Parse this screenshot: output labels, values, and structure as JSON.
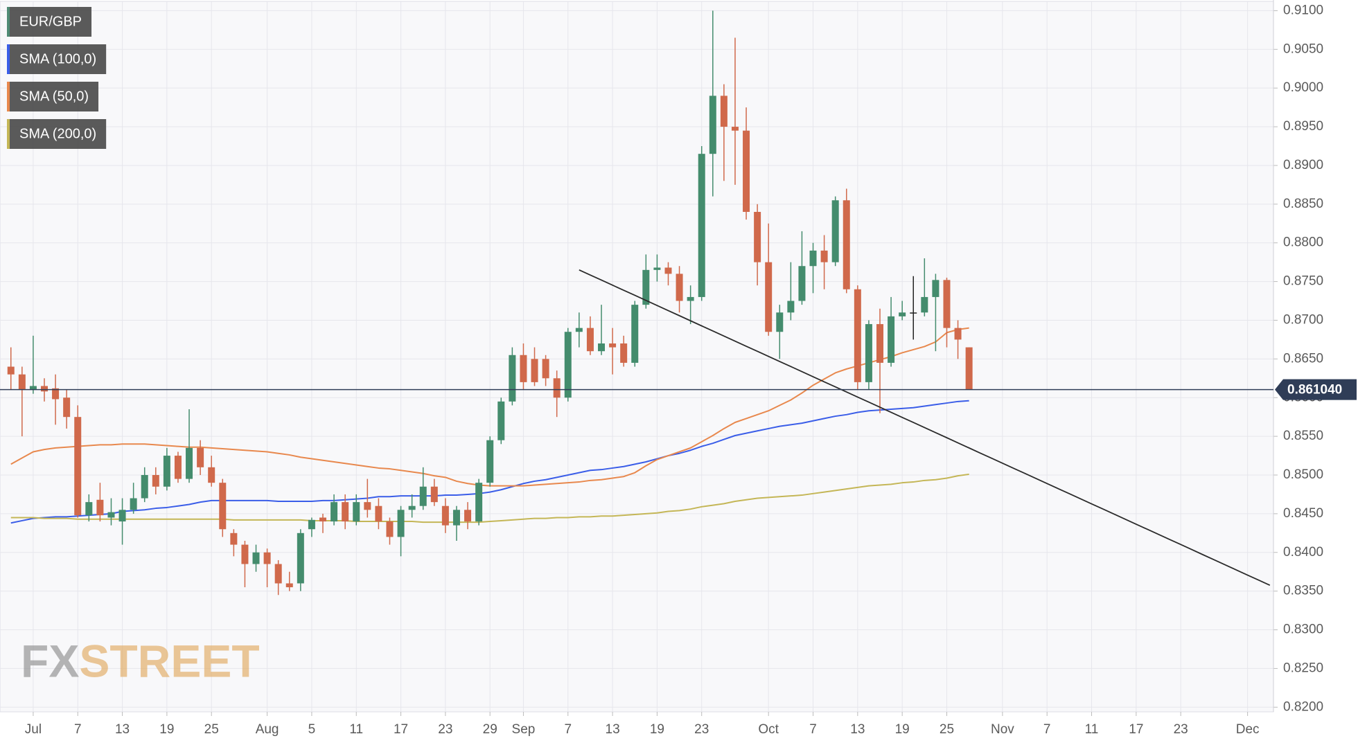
{
  "chart_data": {
    "type": "candlestick",
    "categories": [
      null,
      null,
      "Jul",
      null,
      null,
      null,
      "7",
      null,
      null,
      null,
      "13",
      null,
      null,
      null,
      "19",
      null,
      null,
      null,
      "25",
      null,
      null,
      null,
      null,
      "Aug",
      null,
      null,
      null,
      "5",
      null,
      null,
      null,
      "11",
      null,
      null,
      null,
      "17",
      null,
      null,
      null,
      "23",
      null,
      null,
      null,
      "29",
      null,
      null,
      "Sep",
      null,
      null,
      null,
      "7",
      null,
      null,
      null,
      "13",
      null,
      null,
      null,
      "19",
      null,
      null,
      null,
      "23",
      null,
      null,
      null,
      null,
      null,
      "Oct",
      null,
      null,
      null,
      "7",
      null,
      null,
      null,
      "13",
      null,
      null,
      null,
      "19",
      null,
      null,
      null,
      "25",
      null,
      null,
      null,
      null,
      "Nov",
      null,
      null,
      null,
      "7",
      null,
      null,
      null,
      "11",
      null,
      null,
      null,
      "17",
      null,
      null,
      null,
      "23",
      null,
      null,
      null,
      null,
      null,
      "Dec",
      null,
      null
    ],
    "series": [
      {
        "name": "EUR/GBP",
        "type": "candlestick",
        "color": "#4f8a74",
        "up_color": "#448c6d",
        "down_color": "#d0694b",
        "doji_color": "#222222",
        "open": [
          0.864,
          0.863,
          0.861,
          0.8615,
          0.8612,
          0.86,
          0.8575,
          0.8448,
          0.8468,
          0.8445,
          0.844,
          0.8455,
          0.847,
          0.85,
          0.8485,
          0.8525,
          0.8495,
          0.8535,
          0.851,
          0.849,
          0.8425,
          0.841,
          0.8385,
          0.84,
          0.8385,
          0.836,
          0.836,
          0.843,
          0.8445,
          0.844,
          0.8465,
          0.844,
          0.8465,
          0.846,
          0.844,
          0.842,
          0.8455,
          0.846,
          0.8485,
          0.846,
          0.8435,
          0.8455,
          0.844,
          0.849,
          0.8545,
          0.8595,
          0.8655,
          0.865,
          0.865,
          0.8625,
          0.86,
          0.8685,
          0.869,
          0.866,
          0.867,
          0.867,
          0.8645,
          0.872,
          0.8765,
          0.8768,
          0.876,
          0.8725,
          0.873,
          0.8915,
          0.899,
          0.895,
          0.8945,
          0.884,
          0.8775,
          0.8685,
          0.871,
          0.8725,
          0.877,
          0.879,
          0.8775,
          0.8855,
          0.874,
          0.862,
          0.8695,
          0.8645,
          0.8705,
          0.871,
          0.871,
          0.873,
          0.8752,
          0.869,
          0.8665,
          null,
          null,
          null,
          null,
          null,
          null,
          null,
          null,
          null,
          null,
          null,
          null,
          null,
          null,
          null,
          null,
          null,
          null,
          null,
          null,
          null,
          null,
          null,
          null,
          null,
          null,
          null
        ],
        "high": [
          0.8665,
          0.864,
          0.868,
          0.8625,
          0.863,
          0.861,
          0.859,
          0.8475,
          0.849,
          0.847,
          0.847,
          0.849,
          0.851,
          0.851,
          0.8535,
          0.853,
          0.8585,
          0.8545,
          0.8525,
          0.8495,
          0.843,
          0.8415,
          0.841,
          0.8405,
          0.839,
          0.8375,
          0.843,
          0.8445,
          0.845,
          0.8475,
          0.8475,
          0.8475,
          0.8495,
          0.847,
          0.8445,
          0.846,
          0.8475,
          0.851,
          0.8495,
          0.847,
          0.846,
          0.8465,
          0.8495,
          0.855,
          0.86,
          0.8665,
          0.867,
          0.8665,
          0.8655,
          0.8635,
          0.869,
          0.871,
          0.8705,
          0.872,
          0.869,
          0.868,
          0.8725,
          0.8785,
          0.8785,
          0.8775,
          0.877,
          0.8745,
          0.8925,
          0.91,
          0.9005,
          0.9065,
          0.8975,
          0.885,
          0.8825,
          0.872,
          0.8775,
          0.8815,
          0.88,
          0.881,
          0.886,
          0.887,
          0.8745,
          0.87,
          0.8715,
          0.873,
          0.8725,
          0.8757,
          0.878,
          0.876,
          0.8755,
          0.87,
          0.8665,
          null,
          null,
          null,
          null,
          null,
          null,
          null,
          null,
          null,
          null,
          null,
          null,
          null,
          null,
          null,
          null,
          null,
          null,
          null,
          null,
          null,
          null,
          null,
          null,
          null,
          null,
          null
        ],
        "low": [
          0.861,
          0.855,
          0.8605,
          0.8595,
          0.8565,
          0.856,
          0.8445,
          0.844,
          0.844,
          0.8435,
          0.841,
          0.845,
          0.8465,
          0.8475,
          0.848,
          0.849,
          0.849,
          0.85,
          0.8485,
          0.842,
          0.8395,
          0.8355,
          0.8375,
          0.8355,
          0.8345,
          0.835,
          0.835,
          0.842,
          0.8425,
          0.8435,
          0.843,
          0.8435,
          0.8445,
          0.843,
          0.841,
          0.8395,
          0.8445,
          0.8455,
          0.846,
          0.8425,
          0.8415,
          0.843,
          0.8435,
          0.8485,
          0.854,
          0.859,
          0.861,
          0.8615,
          0.8615,
          0.8575,
          0.8595,
          0.8665,
          0.8655,
          0.8655,
          0.863,
          0.864,
          0.864,
          0.8715,
          0.875,
          0.8745,
          0.871,
          0.8695,
          0.8725,
          0.886,
          0.888,
          0.8875,
          0.883,
          0.8745,
          0.868,
          0.865,
          0.87,
          0.872,
          0.8735,
          0.874,
          0.877,
          0.8735,
          0.861,
          0.861,
          0.858,
          0.864,
          0.87,
          0.8675,
          0.8705,
          0.866,
          0.8665,
          0.865,
          0.861,
          null,
          null,
          null,
          null,
          null,
          null,
          null,
          null,
          null,
          null,
          null,
          null,
          null,
          null,
          null,
          null,
          null,
          null,
          null,
          null,
          null,
          null,
          null,
          null,
          null,
          null,
          null
        ],
        "close": [
          0.863,
          0.861,
          0.8615,
          0.8608,
          0.8598,
          0.8575,
          0.8448,
          0.8465,
          0.8448,
          0.8452,
          0.8455,
          0.847,
          0.85,
          0.8485,
          0.8525,
          0.8495,
          0.8535,
          0.851,
          0.849,
          0.843,
          0.841,
          0.8385,
          0.84,
          0.8385,
          0.836,
          0.8355,
          0.8425,
          0.8442,
          0.844,
          0.8465,
          0.844,
          0.8465,
          0.8455,
          0.844,
          0.842,
          0.8455,
          0.846,
          0.8485,
          0.8465,
          0.8435,
          0.8455,
          0.844,
          0.849,
          0.8545,
          0.8595,
          0.8655,
          0.862,
          0.862,
          0.8625,
          0.86,
          0.8685,
          0.869,
          0.866,
          0.867,
          0.8665,
          0.8645,
          0.872,
          0.8765,
          0.8768,
          0.876,
          0.8725,
          0.873,
          0.8915,
          0.899,
          0.895,
          0.8945,
          0.884,
          0.8775,
          0.8685,
          0.871,
          0.8725,
          0.877,
          0.879,
          0.8775,
          0.8855,
          0.874,
          0.862,
          0.8695,
          0.8645,
          0.8705,
          0.871,
          0.871,
          0.873,
          0.8752,
          0.869,
          0.8675,
          0.861,
          null,
          null,
          null,
          null,
          null,
          null,
          null,
          null,
          null,
          null,
          null,
          null,
          null,
          null,
          null,
          null,
          null,
          null,
          null,
          null,
          null,
          null,
          null,
          null,
          null,
          null,
          null
        ]
      },
      {
        "name": "SMA (100,0)",
        "type": "line",
        "color": "#3a5de8",
        "values": [
          0.8438,
          0.8441,
          0.8444,
          0.8445,
          0.8446,
          0.8446,
          0.8447,
          0.8448,
          0.8449,
          0.845,
          0.8453,
          0.8454,
          0.8455,
          0.8457,
          0.8458,
          0.846,
          0.8462,
          0.8465,
          0.8467,
          0.8467,
          0.8467,
          0.8467,
          0.8467,
          0.8467,
          0.8466,
          0.8466,
          0.8466,
          0.8466,
          0.8467,
          0.8467,
          0.8468,
          0.8469,
          0.847,
          0.8472,
          0.8472,
          0.8473,
          0.8473,
          0.8473,
          0.8473,
          0.8474,
          0.8474,
          0.8475,
          0.8476,
          0.8478,
          0.8481,
          0.8485,
          0.8489,
          0.8492,
          0.8494,
          0.8497,
          0.85,
          0.8503,
          0.8506,
          0.8507,
          0.8509,
          0.8511,
          0.8514,
          0.8517,
          0.8521,
          0.8525,
          0.8528,
          0.8532,
          0.8537,
          0.8541,
          0.8546,
          0.8551,
          0.8554,
          0.8557,
          0.856,
          0.8563,
          0.8565,
          0.8567,
          0.857,
          0.8573,
          0.8576,
          0.8578,
          0.8581,
          0.8583,
          0.8584,
          0.8585,
          0.8586,
          0.8587,
          0.8589,
          0.8591,
          0.8593,
          0.8595,
          0.8596,
          null,
          null,
          null,
          null,
          null,
          null,
          null,
          null,
          null,
          null,
          null,
          null,
          null,
          null,
          null,
          null,
          null,
          null,
          null,
          null,
          null,
          null,
          null,
          null,
          null,
          null,
          null
        ]
      },
      {
        "name": "SMA (50,0)",
        "type": "line",
        "color": "#e8884d",
        "values": [
          0.8514,
          0.8522,
          0.853,
          0.8533,
          0.8535,
          0.8536,
          0.8537,
          0.8538,
          0.8539,
          0.8539,
          0.854,
          0.854,
          0.854,
          0.8539,
          0.8538,
          0.8537,
          0.8536,
          0.8536,
          0.8535,
          0.8534,
          0.8533,
          0.8532,
          0.8531,
          0.853,
          0.8528,
          0.8526,
          0.8523,
          0.8521,
          0.8519,
          0.8517,
          0.8515,
          0.8513,
          0.8511,
          0.8509,
          0.8508,
          0.8506,
          0.8504,
          0.8502,
          0.8499,
          0.8497,
          0.8492,
          0.8489,
          0.8487,
          0.8486,
          0.8486,
          0.8486,
          0.8486,
          0.8487,
          0.8488,
          0.8489,
          0.849,
          0.8491,
          0.8493,
          0.8494,
          0.8496,
          0.8498,
          0.8503,
          0.8512,
          0.852,
          0.8525,
          0.853,
          0.8535,
          0.8543,
          0.8551,
          0.856,
          0.8568,
          0.8573,
          0.8578,
          0.8583,
          0.859,
          0.8597,
          0.8606,
          0.8616,
          0.8624,
          0.8632,
          0.8637,
          0.8641,
          0.8645,
          0.8649,
          0.8653,
          0.8658,
          0.8662,
          0.8666,
          0.8672,
          0.8684,
          0.8688,
          0.869,
          null,
          null,
          null,
          null,
          null,
          null,
          null,
          null,
          null,
          null,
          null,
          null,
          null,
          null,
          null,
          null,
          null,
          null,
          null,
          null,
          null,
          null,
          null,
          null,
          null,
          null,
          null
        ]
      },
      {
        "name": "SMA (200,0)",
        "type": "line",
        "color": "#c4b656",
        "values": [
          0.8445,
          0.8445,
          0.8445,
          0.8444,
          0.8444,
          0.8444,
          0.8443,
          0.8443,
          0.8443,
          0.8443,
          0.8443,
          0.8443,
          0.8443,
          0.8443,
          0.8443,
          0.8443,
          0.8443,
          0.8443,
          0.8443,
          0.8443,
          0.8442,
          0.8442,
          0.8442,
          0.8442,
          0.8442,
          0.8442,
          0.8442,
          0.8441,
          0.8441,
          0.8441,
          0.8441,
          0.844,
          0.844,
          0.844,
          0.844,
          0.844,
          0.844,
          0.8439,
          0.8439,
          0.8439,
          0.8439,
          0.8439,
          0.8439,
          0.844,
          0.8441,
          0.8442,
          0.8443,
          0.8444,
          0.8444,
          0.8445,
          0.8445,
          0.8446,
          0.8446,
          0.8447,
          0.8447,
          0.8448,
          0.8449,
          0.845,
          0.8451,
          0.8453,
          0.8454,
          0.8456,
          0.8459,
          0.8461,
          0.8463,
          0.8466,
          0.8468,
          0.847,
          0.8471,
          0.8472,
          0.8473,
          0.8474,
          0.8476,
          0.8478,
          0.848,
          0.8482,
          0.8484,
          0.8486,
          0.8487,
          0.8488,
          0.849,
          0.8491,
          0.8493,
          0.8494,
          0.8496,
          0.8499,
          0.8501,
          null,
          null,
          null,
          null,
          null,
          null,
          null,
          null,
          null,
          null,
          null,
          null,
          null,
          null,
          null,
          null,
          null,
          null,
          null,
          null,
          null,
          null,
          null,
          null,
          null,
          null,
          null
        ]
      }
    ],
    "trendline": {
      "color": "#2b2b2b",
      "values": [
        null,
        null,
        null,
        null,
        null,
        null,
        null,
        null,
        null,
        null,
        null,
        null,
        null,
        null,
        null,
        null,
        null,
        null,
        null,
        null,
        null,
        null,
        null,
        null,
        null,
        null,
        null,
        null,
        null,
        null,
        null,
        null,
        null,
        null,
        null,
        null,
        null,
        null,
        null,
        null,
        null,
        null,
        null,
        null,
        null,
        null,
        null,
        null,
        null,
        null,
        null,
        0.8765,
        0.87584,
        0.87519,
        0.87453,
        0.87387,
        0.87322,
        0.87256,
        0.8719,
        0.87124,
        0.87059,
        0.86993,
        0.86927,
        0.86862,
        0.86796,
        0.8673,
        0.86664,
        0.86599,
        0.86533,
        0.86467,
        0.86402,
        0.86336,
        0.8627,
        0.86204,
        0.86139,
        0.86073,
        0.86007,
        0.85942,
        0.85876,
        0.8581,
        0.85744,
        0.85679,
        0.85613,
        0.85547,
        0.85482,
        0.85416,
        0.8535,
        0.85284,
        0.85219,
        0.85153,
        0.85087,
        0.85022,
        0.84956,
        0.8489,
        0.84824,
        0.84759,
        0.84693,
        0.84627,
        0.84562,
        0.84496,
        0.8443,
        0.84364,
        0.84299,
        0.84233,
        0.84167,
        0.84102,
        0.84036,
        0.8397,
        0.83904,
        0.83839,
        0.83773,
        0.83707,
        0.83642,
        0.83576
      ]
    },
    "last_price": {
      "value": 0.86104,
      "label": "0.861040",
      "color": "#2f3d57"
    },
    "ylim": [
      0.8194,
      0.9112
    ],
    "yticks": [
      {
        "value": 0.82,
        "label": "0.8200"
      },
      {
        "value": 0.825,
        "label": "0.8250"
      },
      {
        "value": 0.83,
        "label": "0.8300"
      },
      {
        "value": 0.835,
        "label": "0.8350"
      },
      {
        "value": 0.84,
        "label": "0.8400"
      },
      {
        "value": 0.845,
        "label": "0.8450"
      },
      {
        "value": 0.85,
        "label": "0.8500"
      },
      {
        "value": 0.855,
        "label": "0.8550"
      },
      {
        "value": 0.86,
        "label": "0.8600"
      },
      {
        "value": 0.865,
        "label": "0.8650"
      },
      {
        "value": 0.87,
        "label": "0.8700"
      },
      {
        "value": 0.875,
        "label": "0.8750"
      },
      {
        "value": 0.88,
        "label": "0.8800"
      },
      {
        "value": 0.885,
        "label": "0.8850"
      },
      {
        "value": 0.89,
        "label": "0.8900"
      },
      {
        "value": 0.895,
        "label": "0.8950"
      },
      {
        "value": 0.9,
        "label": "0.9000"
      },
      {
        "value": 0.905,
        "label": "0.9050"
      },
      {
        "value": 0.91,
        "label": "0.9100"
      }
    ],
    "y_axis_side": "right",
    "grid": true,
    "legend": "top-left",
    "watermark": [
      "FX",
      "STREET"
    ]
  }
}
